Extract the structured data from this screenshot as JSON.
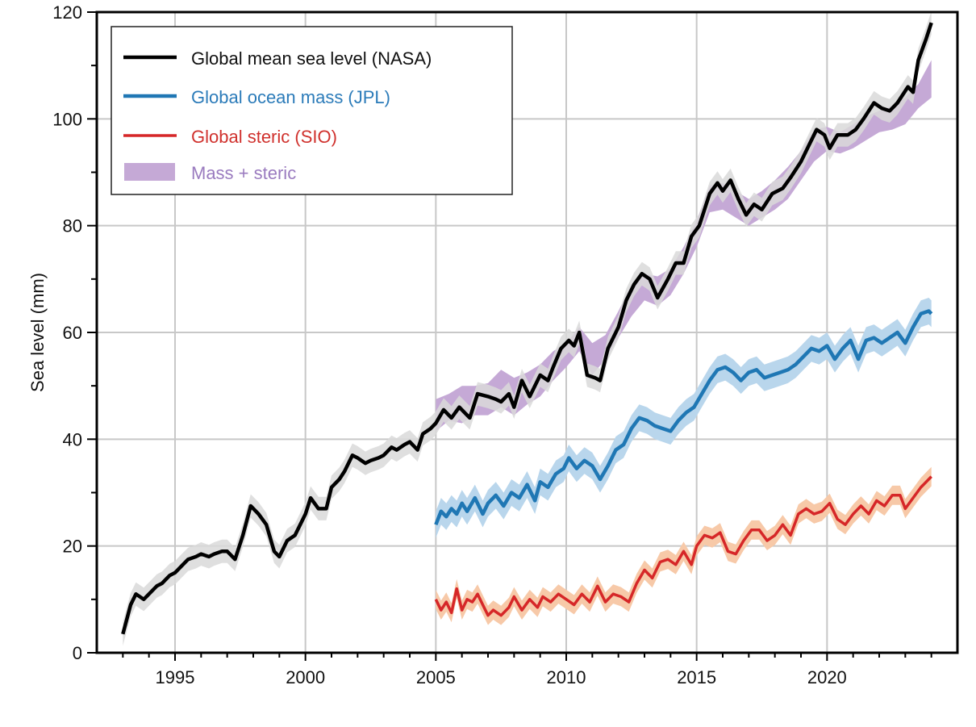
{
  "chart_data": {
    "type": "line",
    "title": "",
    "xlabel": "",
    "ylabel": "Sea level (mm)",
    "xlim": [
      1992.0,
      2025.0
    ],
    "ylim": [
      0,
      120
    ],
    "xticks": [
      1995,
      2000,
      2005,
      2010,
      2015,
      2020
    ],
    "xtick_labels": [
      "1995",
      "2000",
      "2005",
      "2010",
      "2015",
      "2020"
    ],
    "xminor_step": 1,
    "yticks": [
      0,
      20,
      40,
      60,
      80,
      100,
      120
    ],
    "ytick_labels": [
      "0",
      "20",
      "40",
      "60",
      "80",
      "100",
      "120"
    ],
    "yminor_step": 10,
    "grid": true,
    "legend_position": "top-left",
    "colors": {
      "gmsl": "#000000",
      "gmsl_band": "#d9d9d9",
      "mass": "#1f77b4",
      "mass_band": "#b9d6ec",
      "steric": "#d62728",
      "steric_band": "#f7c9a8",
      "sum_band": "#c5a9d6",
      "legend_mass_text": "#2b7bb9",
      "legend_steric_text": "#d0312d",
      "legend_sum_text": "#9a7bbf"
    },
    "legend": [
      {
        "label": "Global mean sea level (NASA)",
        "kind": "line",
        "series": "gmsl"
      },
      {
        "label": "Global ocean mass (JPL)",
        "kind": "line",
        "series": "mass"
      },
      {
        "label": "Global steric (SIO)",
        "kind": "line",
        "series": "steric"
      },
      {
        "label": "Mass + steric",
        "kind": "patch",
        "series": "sum"
      }
    ],
    "series": [
      {
        "name": "Global mean sea level (NASA)",
        "key": "gmsl",
        "uncertainty_mm": 2.2,
        "x": [
          1993.0,
          1993.3,
          1993.5,
          1993.8,
          1994.0,
          1994.3,
          1994.5,
          1994.8,
          1995.0,
          1995.3,
          1995.5,
          1995.8,
          1996.0,
          1996.3,
          1996.5,
          1996.8,
          1997.0,
          1997.3,
          1997.6,
          1997.9,
          1998.2,
          1998.5,
          1998.8,
          1999.0,
          1999.3,
          1999.6,
          2000.0,
          2000.2,
          2000.5,
          2000.8,
          2001.0,
          2001.3,
          2001.5,
          2001.8,
          2002.0,
          2002.3,
          2002.5,
          2002.8,
          2003.0,
          2003.3,
          2003.5,
          2003.8,
          2004.0,
          2004.3,
          2004.5,
          2004.8,
          2005.0,
          2005.3,
          2005.6,
          2005.9,
          2006.3,
          2006.6,
          2007.0,
          2007.3,
          2007.5,
          2007.8,
          2008.0,
          2008.3,
          2008.6,
          2009.0,
          2009.3,
          2009.5,
          2009.8,
          2010.1,
          2010.3,
          2010.5,
          2010.8,
          2011.1,
          2011.3,
          2011.6,
          2012.0,
          2012.3,
          2012.6,
          2012.9,
          2013.2,
          2013.5,
          2013.9,
          2014.2,
          2014.5,
          2014.8,
          2015.1,
          2015.5,
          2015.8,
          2016.0,
          2016.3,
          2016.6,
          2016.9,
          2017.2,
          2017.5,
          2017.9,
          2018.3,
          2018.6,
          2019.0,
          2019.3,
          2019.6,
          2019.9,
          2020.1,
          2020.4,
          2020.8,
          2021.1,
          2021.4,
          2021.8,
          2022.1,
          2022.4,
          2022.7,
          2023.1,
          2023.3,
          2023.5,
          2023.8,
          2024.0
        ],
        "y": [
          3.5,
          9.0,
          11.0,
          10.0,
          11.0,
          12.5,
          13.0,
          14.5,
          15.0,
          16.5,
          17.5,
          18.0,
          18.5,
          18.0,
          18.5,
          19.0,
          19.0,
          17.5,
          22.0,
          27.5,
          26.0,
          24.0,
          19.0,
          18.0,
          21.0,
          22.0,
          26.0,
          29.0,
          27.0,
          27.0,
          31.0,
          32.5,
          34.0,
          37.0,
          36.5,
          35.5,
          36.0,
          36.5,
          37.0,
          38.5,
          38.0,
          39.0,
          39.5,
          38.0,
          41.0,
          42.0,
          43.0,
          45.5,
          44.0,
          46.0,
          44.0,
          48.5,
          48.0,
          47.5,
          47.0,
          48.5,
          46.0,
          51.0,
          48.0,
          52.0,
          51.0,
          53.5,
          57.0,
          58.5,
          57.5,
          60.0,
          52.0,
          51.5,
          51.0,
          57.0,
          61.0,
          66.0,
          69.0,
          71.0,
          70.0,
          66.5,
          70.0,
          73.0,
          73.0,
          78.0,
          80.0,
          86.0,
          88.0,
          86.5,
          88.5,
          85.0,
          82.0,
          84.0,
          83.0,
          86.0,
          87.0,
          89.0,
          92.0,
          95.0,
          98.0,
          97.0,
          94.5,
          97.0,
          97.0,
          98.0,
          100.0,
          103.0,
          102.0,
          101.5,
          103.0,
          106.0,
          105.0,
          111.0,
          115.0,
          118.0
        ]
      },
      {
        "name": "Global ocean mass (JPL)",
        "key": "mass",
        "uncertainty_mm": 2.5,
        "x": [
          2005.0,
          2005.2,
          2005.4,
          2005.6,
          2005.8,
          2006.0,
          2006.2,
          2006.5,
          2006.8,
          2007.0,
          2007.3,
          2007.6,
          2007.9,
          2008.2,
          2008.5,
          2008.8,
          2009.0,
          2009.3,
          2009.6,
          2009.9,
          2010.1,
          2010.4,
          2010.7,
          2011.0,
          2011.3,
          2011.6,
          2011.9,
          2012.2,
          2012.5,
          2012.8,
          2013.1,
          2013.4,
          2013.7,
          2014.0,
          2014.3,
          2014.6,
          2014.9,
          2015.2,
          2015.5,
          2015.8,
          2016.1,
          2016.4,
          2016.7,
          2017.0,
          2017.3,
          2017.6,
          2017.9,
          2018.2,
          2018.5,
          2018.8,
          2019.1,
          2019.4,
          2019.7,
          2020.0,
          2020.3,
          2020.6,
          2020.9,
          2021.2,
          2021.5,
          2021.8,
          2022.1,
          2022.4,
          2022.7,
          2023.0,
          2023.3,
          2023.6,
          2023.9,
          2024.0
        ],
        "y": [
          24.0,
          26.5,
          25.5,
          27.0,
          26.0,
          28.0,
          26.5,
          29.0,
          26.0,
          28.0,
          29.5,
          27.5,
          30.0,
          29.0,
          31.5,
          28.5,
          32.0,
          31.0,
          33.5,
          34.5,
          36.5,
          34.5,
          36.0,
          35.0,
          32.5,
          35.0,
          38.0,
          39.0,
          42.0,
          44.0,
          43.5,
          42.5,
          42.0,
          41.5,
          43.5,
          45.0,
          46.0,
          48.5,
          51.0,
          53.0,
          53.5,
          52.5,
          51.0,
          52.5,
          53.0,
          51.5,
          52.0,
          52.5,
          53.0,
          54.0,
          55.5,
          57.0,
          56.5,
          57.5,
          55.0,
          57.0,
          58.5,
          55.0,
          58.5,
          59.0,
          58.0,
          59.0,
          60.0,
          58.0,
          61.0,
          63.5,
          64.0,
          63.5
        ]
      },
      {
        "name": "Global steric (SIO)",
        "key": "steric",
        "uncertainty_mm": 1.8,
        "x": [
          2005.0,
          2005.2,
          2005.4,
          2005.6,
          2005.8,
          2006.0,
          2006.2,
          2006.4,
          2006.6,
          2006.8,
          2007.0,
          2007.2,
          2007.5,
          2007.8,
          2008.0,
          2008.3,
          2008.6,
          2008.9,
          2009.1,
          2009.4,
          2009.7,
          2010.0,
          2010.3,
          2010.6,
          2010.9,
          2011.2,
          2011.5,
          2011.8,
          2012.1,
          2012.4,
          2012.7,
          2013.0,
          2013.3,
          2013.6,
          2013.9,
          2014.2,
          2014.5,
          2014.8,
          2015.0,
          2015.3,
          2015.6,
          2015.9,
          2016.2,
          2016.5,
          2016.8,
          2017.1,
          2017.4,
          2017.7,
          2018.0,
          2018.3,
          2018.6,
          2018.9,
          2019.2,
          2019.5,
          2019.8,
          2020.1,
          2020.4,
          2020.7,
          2021.0,
          2021.3,
          2021.6,
          2021.9,
          2022.2,
          2022.5,
          2022.8,
          2023.0,
          2023.3,
          2023.6,
          2023.9,
          2024.0
        ],
        "y": [
          10.0,
          8.0,
          9.5,
          7.5,
          12.0,
          8.0,
          10.0,
          9.5,
          11.0,
          9.0,
          7.0,
          8.0,
          7.0,
          8.5,
          10.5,
          8.0,
          10.0,
          8.5,
          10.5,
          9.5,
          11.0,
          10.0,
          9.0,
          11.0,
          9.5,
          12.5,
          9.5,
          11.0,
          10.5,
          9.5,
          13.0,
          15.5,
          14.0,
          17.0,
          17.5,
          16.5,
          19.0,
          16.5,
          20.0,
          22.0,
          21.5,
          22.5,
          19.0,
          18.5,
          21.0,
          23.0,
          23.0,
          21.0,
          22.0,
          24.0,
          22.0,
          26.0,
          27.0,
          26.0,
          26.5,
          28.0,
          25.0,
          24.0,
          26.0,
          27.5,
          26.0,
          28.5,
          27.5,
          29.5,
          29.5,
          27.0,
          29.0,
          31.0,
          32.5,
          33.0
        ]
      },
      {
        "name": "Mass + steric",
        "key": "sum",
        "kind": "band",
        "x": [
          2005.0,
          2005.5,
          2006.0,
          2006.5,
          2007.0,
          2007.5,
          2008.0,
          2008.5,
          2009.0,
          2009.5,
          2010.0,
          2010.5,
          2011.0,
          2011.5,
          2012.0,
          2012.5,
          2013.0,
          2013.5,
          2014.0,
          2014.5,
          2015.0,
          2015.5,
          2016.0,
          2016.5,
          2017.0,
          2017.5,
          2018.0,
          2018.5,
          2019.0,
          2019.5,
          2020.0,
          2020.5,
          2021.0,
          2021.5,
          2022.0,
          2022.5,
          2023.0,
          2023.5,
          2024.0
        ],
        "lower": [
          41.5,
          43.5,
          43.0,
          44.5,
          44.5,
          46.0,
          44.5,
          46.5,
          48.0,
          51.0,
          53.5,
          56.5,
          52.0,
          55.0,
          59.0,
          63.0,
          66.0,
          65.0,
          67.0,
          71.0,
          76.0,
          82.5,
          83.0,
          81.5,
          80.0,
          81.5,
          83.0,
          85.0,
          88.5,
          92.0,
          94.0,
          93.5,
          94.5,
          96.0,
          97.5,
          98.0,
          99.0,
          102.0,
          104.0
        ],
        "upper": [
          47.5,
          48.5,
          50.0,
          50.0,
          50.5,
          53.0,
          51.5,
          52.5,
          54.0,
          56.5,
          58.0,
          61.0,
          58.0,
          59.5,
          64.0,
          69.0,
          71.0,
          70.5,
          72.0,
          76.0,
          81.0,
          87.5,
          88.0,
          86.5,
          85.0,
          86.5,
          88.5,
          91.0,
          94.0,
          98.0,
          98.5,
          97.5,
          99.0,
          100.5,
          101.5,
          102.5,
          104.0,
          106.5,
          111.0
        ]
      }
    ]
  }
}
